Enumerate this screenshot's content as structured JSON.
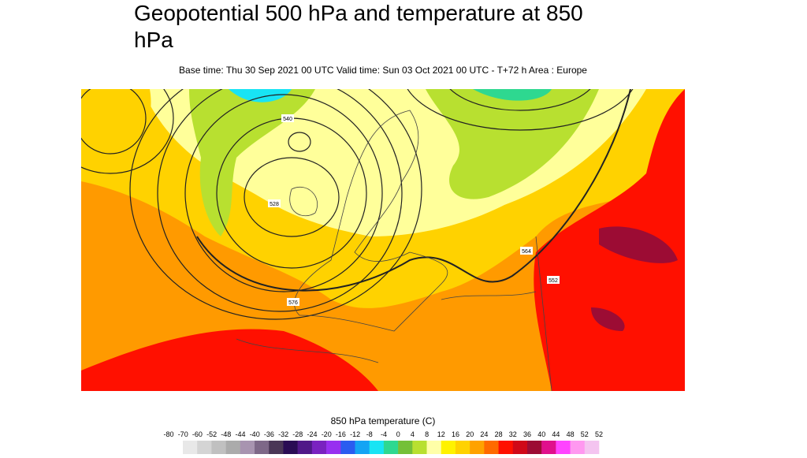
{
  "title": "Geopotential 500 hPa and temperature at 850 hPa",
  "subtitle": "Base time: Thu 30 Sep 2021 00 UTC Valid time: Sun 03 Oct 2021 00 UTC - T+72 h Area : Europe",
  "map": {
    "contour_labels": [
      "528",
      "540",
      "576",
      "564",
      "552"
    ]
  },
  "legend": {
    "title": "850 hPa temperature (C)",
    "labels": [
      -80,
      -70,
      -60,
      -52,
      -48,
      -44,
      -40,
      -36,
      -32,
      -28,
      -24,
      -20,
      -16,
      -12,
      -8,
      -4,
      0,
      4,
      8,
      12,
      16,
      20,
      24,
      28,
      32,
      36,
      40,
      44,
      48,
      52,
      52
    ],
    "colors": [
      "#e8e8e8",
      "#d4d4d4",
      "#c0c0c0",
      "#ababab",
      "#a894b0",
      "#7e6888",
      "#4a3656",
      "#2a0c54",
      "#501888",
      "#7a22c0",
      "#9830f0",
      "#2a5cf0",
      "#14a4f4",
      "#18e4f4",
      "#2ed890",
      "#74c038",
      "#b8e030",
      "#ffffa8",
      "#fff200",
      "#ffd200",
      "#ffa200",
      "#ff6a00",
      "#ff1000",
      "#d00818",
      "#9c0c34",
      "#e0108c",
      "#ff44ff",
      "#ff98f0",
      "#f4c4f0"
    ]
  }
}
